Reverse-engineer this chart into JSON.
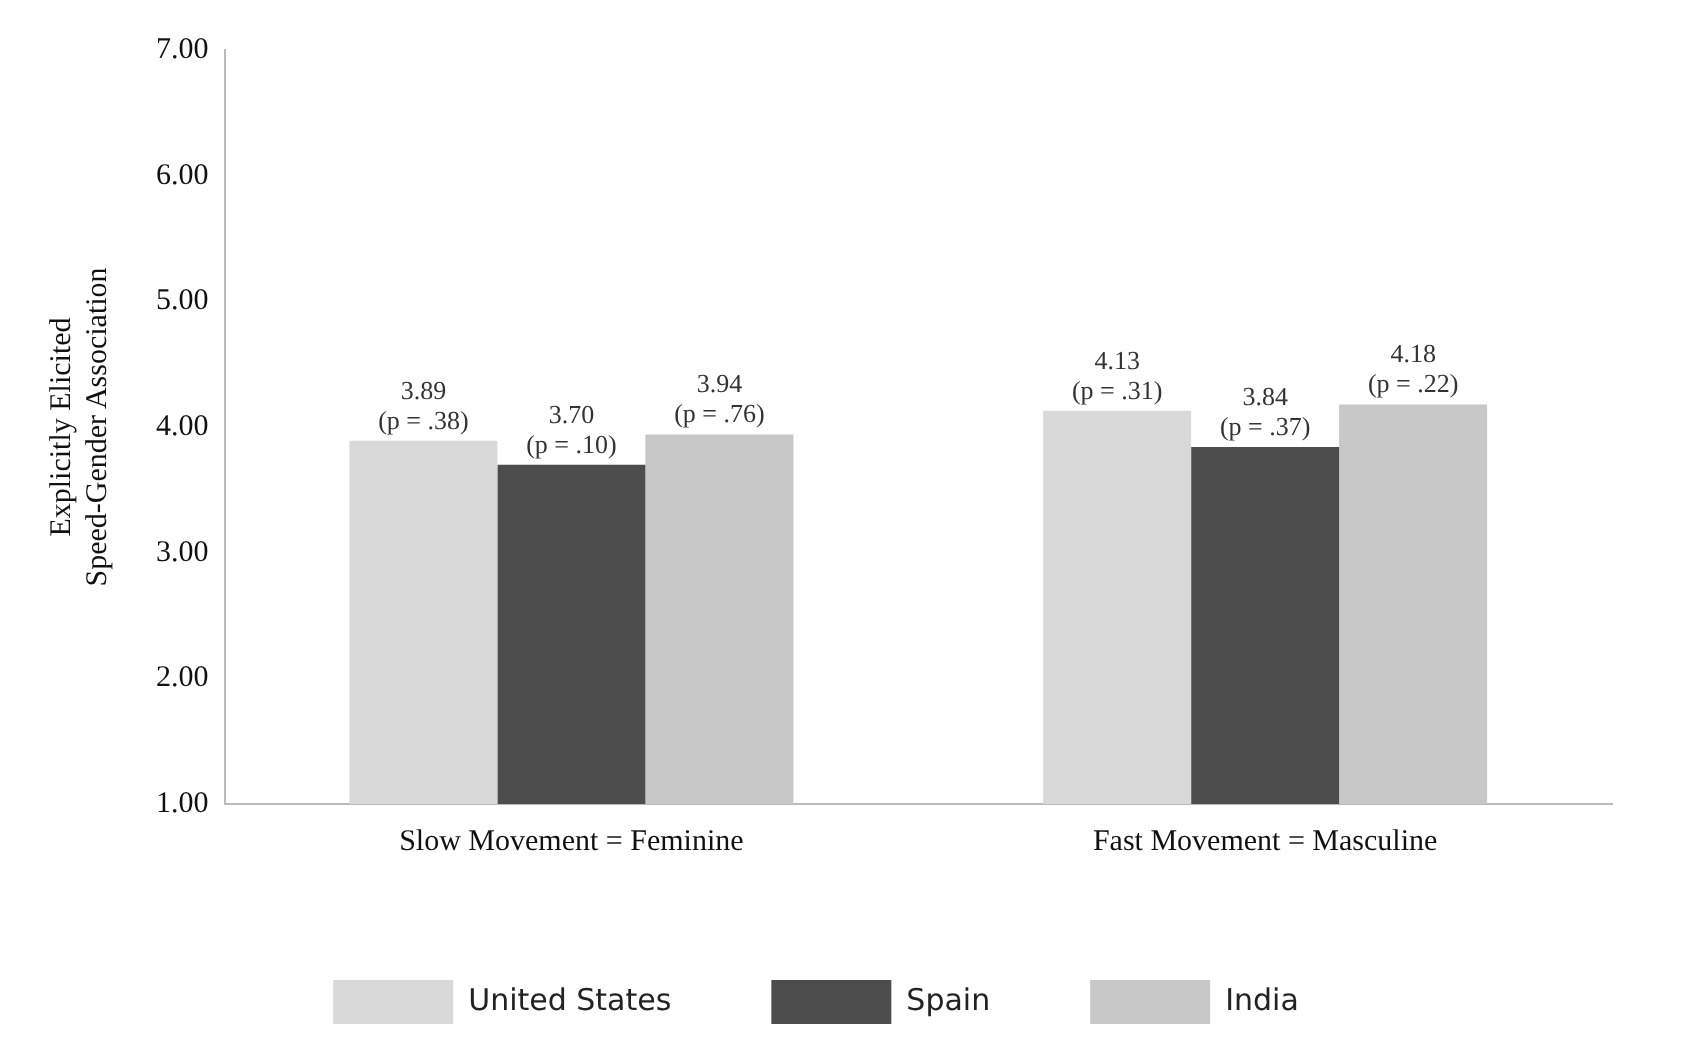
{
  "chart_data": {
    "type": "bar",
    "ylabel": "Explicitly Elicited\nSpeed-Gender Association",
    "categories": [
      "Slow Movement = Feminine",
      "Fast Movement = Masculine"
    ],
    "series": [
      {
        "name": "United States",
        "color": "#d9d9d9",
        "values": [
          3.89,
          4.13
        ],
        "value_labels": [
          "3.89\n(p = .38)",
          "4.13\n(p = .31)"
        ]
      },
      {
        "name": "Spain",
        "color": "#4d4d4d",
        "values": [
          3.7,
          3.84
        ],
        "value_labels": [
          "3.70\n(p = .10)",
          "3.84\n(p = .37)"
        ]
      },
      {
        "name": "India",
        "color": "#c8c8c8",
        "values": [
          3.94,
          4.18
        ],
        "value_labels": [
          "3.94\n(p = .76)",
          "4.18\n(p = .22)"
        ]
      }
    ],
    "ylim": [
      1,
      7
    ],
    "yticks": [
      {
        "value": 1,
        "label": "1.00"
      },
      {
        "value": 2,
        "label": "2.00"
      },
      {
        "value": 3,
        "label": "3.00"
      },
      {
        "value": 4,
        "label": "4.00"
      },
      {
        "value": 5,
        "label": "5.00"
      },
      {
        "value": 6,
        "label": "6.00"
      },
      {
        "value": 7,
        "label": "7.00"
      }
    ],
    "grid": false,
    "legend": "bottom"
  }
}
